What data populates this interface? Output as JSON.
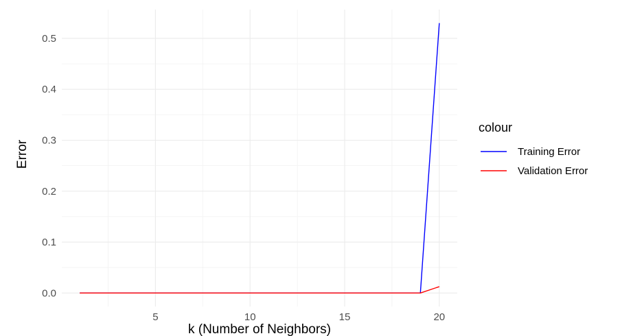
{
  "chart_data": {
    "type": "line",
    "xlabel": "k (Number of Neighbors)",
    "ylabel": "Error",
    "xlim": [
      0.05,
      20.95
    ],
    "ylim": [
      -0.0265,
      0.5565
    ],
    "x_ticks": [
      5,
      10,
      15,
      20
    ],
    "x_tick_labels": [
      "5",
      "10",
      "15",
      "20"
    ],
    "y_ticks": [
      0.0,
      0.1,
      0.2,
      0.3,
      0.4,
      0.5
    ],
    "y_tick_labels": [
      "0.0",
      "0.1",
      "0.2",
      "0.3",
      "0.4",
      "0.5"
    ],
    "grid": true,
    "legend": {
      "title": "colour",
      "position": "right",
      "entries": [
        "Training Error",
        "Validation Error"
      ]
    },
    "x": [
      1,
      2,
      3,
      4,
      5,
      6,
      7,
      8,
      9,
      10,
      11,
      12,
      13,
      14,
      15,
      16,
      17,
      18,
      19,
      20
    ],
    "series": [
      {
        "name": "Training Error",
        "color": "#0000ff",
        "values": [
          0,
          0,
          0,
          0,
          0,
          0,
          0,
          0,
          0,
          0,
          0,
          0,
          0,
          0,
          0,
          0,
          0,
          0,
          0,
          0.53
        ]
      },
      {
        "name": "Validation Error",
        "color": "#ff0000",
        "values": [
          0,
          0,
          0,
          0,
          0,
          0,
          0,
          0,
          0,
          0,
          0,
          0,
          0,
          0,
          0,
          0,
          0,
          0,
          0,
          0.0125
        ]
      }
    ]
  }
}
